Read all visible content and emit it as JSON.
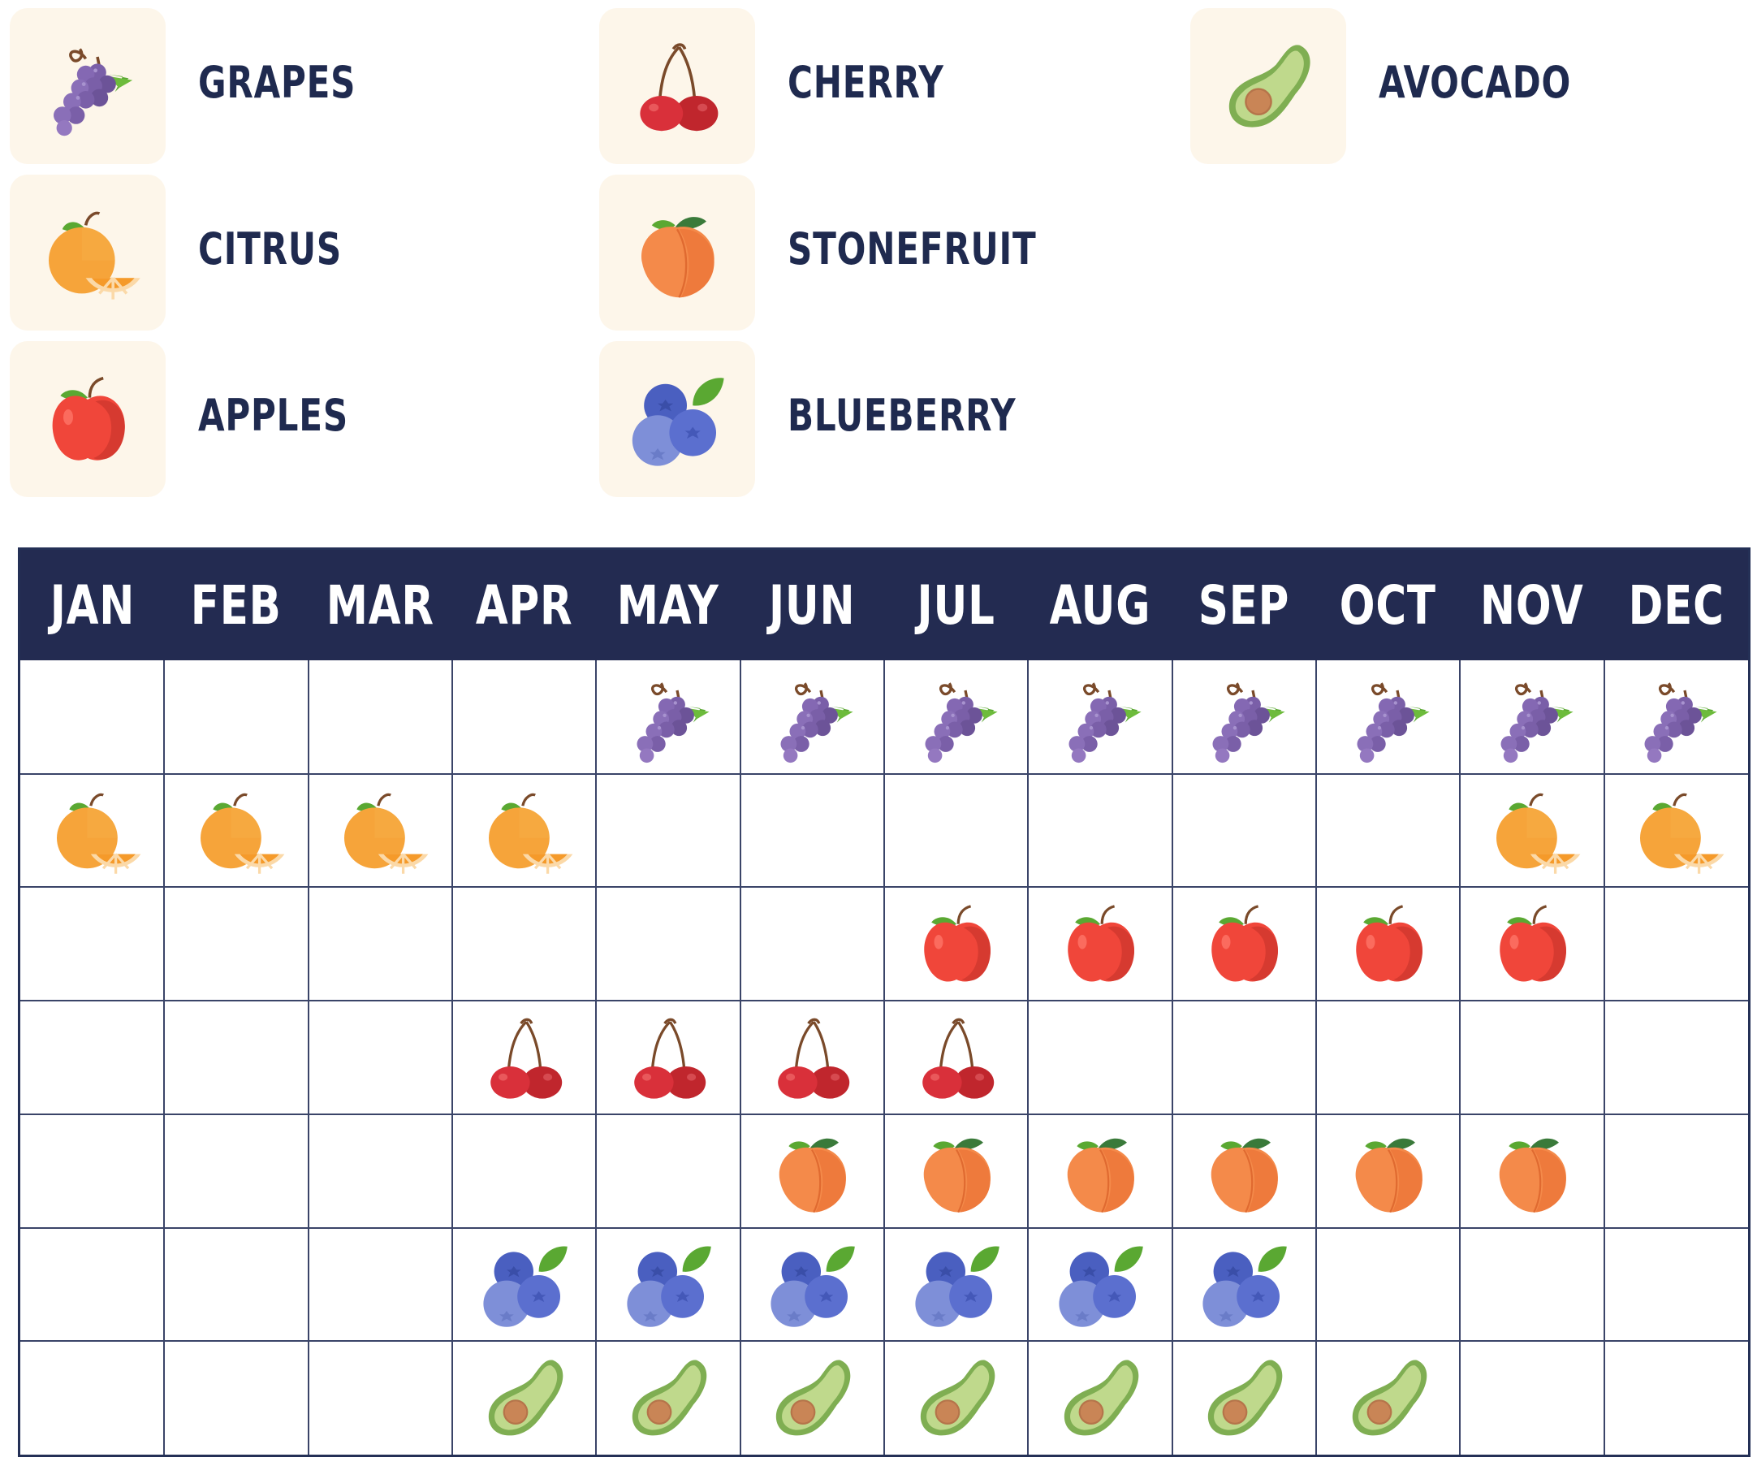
{
  "legend": [
    {
      "label": "GRAPES",
      "icon": "grapes-icon"
    },
    {
      "label": "CHERRY",
      "icon": "cherry-icon"
    },
    {
      "label": "AVOCADO",
      "icon": "avocado-icon"
    },
    {
      "label": "CITRUS",
      "icon": "citrus-icon"
    },
    {
      "label": "STONEFRUIT",
      "icon": "stonefruit-icon"
    },
    {
      "label": "APPLES",
      "icon": "apple-icon"
    },
    {
      "label": "BLUEBERRY",
      "icon": "blueberry-icon"
    }
  ],
  "chart_data": {
    "type": "table",
    "months": [
      "JAN",
      "FEB",
      "MAR",
      "APR",
      "MAY",
      "JUN",
      "JUL",
      "AUG",
      "SEP",
      "OCT",
      "NOV",
      "DEC"
    ],
    "rows": [
      {
        "fruit": "GRAPES",
        "icon": "grapes-icon",
        "in_season": [
          0,
          0,
          0,
          0,
          1,
          1,
          1,
          1,
          1,
          1,
          1,
          1
        ]
      },
      {
        "fruit": "CITRUS",
        "icon": "citrus-icon",
        "in_season": [
          1,
          1,
          1,
          1,
          0,
          0,
          0,
          0,
          0,
          0,
          1,
          1
        ]
      },
      {
        "fruit": "APPLES",
        "icon": "apple-icon",
        "in_season": [
          0,
          0,
          0,
          0,
          0,
          0,
          1,
          1,
          1,
          1,
          1,
          0
        ]
      },
      {
        "fruit": "CHERRY",
        "icon": "cherry-icon",
        "in_season": [
          0,
          0,
          0,
          1,
          1,
          1,
          1,
          0,
          0,
          0,
          0,
          0
        ]
      },
      {
        "fruit": "STONEFRUIT",
        "icon": "stonefruit-icon",
        "in_season": [
          0,
          0,
          0,
          0,
          0,
          1,
          1,
          1,
          1,
          1,
          1,
          0
        ]
      },
      {
        "fruit": "BLUEBERRY",
        "icon": "blueberry-icon",
        "in_season": [
          0,
          0,
          0,
          1,
          1,
          1,
          1,
          1,
          1,
          0,
          0,
          0
        ]
      },
      {
        "fruit": "AVOCADO",
        "icon": "avocado-icon",
        "in_season": [
          0,
          0,
          0,
          1,
          1,
          1,
          1,
          1,
          1,
          1,
          0,
          0
        ]
      }
    ]
  },
  "colors": {
    "header_bg": "#232b51",
    "label_text": "#1f2a4f",
    "tile_bg": "#fdf6ea"
  }
}
